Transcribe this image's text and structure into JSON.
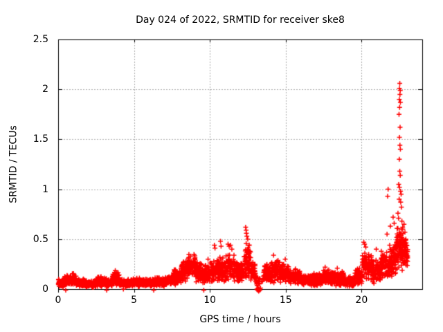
{
  "chart_data": {
    "type": "scatter",
    "title": "Day 024 of 2022, SRMTID for receiver ske8",
    "xlabel": "GPS time / hours",
    "ylabel": "SRMTID / TECUs",
    "xlim": [
      0,
      24
    ],
    "ylim": [
      0,
      2.5
    ],
    "xticks": {
      "values": [
        0,
        5,
        10,
        15,
        20
      ],
      "labels": [
        "0",
        "5",
        "10",
        "15",
        "20"
      ]
    },
    "yticks": {
      "values": [
        0,
        0.5,
        1,
        1.5,
        2,
        2.5
      ],
      "labels": [
        "0",
        "0.5",
        "1",
        "1.5",
        "2",
        "2.5"
      ]
    },
    "grid": {
      "on": true,
      "color": "#ababab",
      "dash": [
        2,
        2
      ]
    },
    "marker": {
      "shape": "plus",
      "color": "#ff0000",
      "size": 7,
      "line_width": 1.5
    },
    "background": "#ffffff",
    "border_color": "#000000",
    "legend": "none",
    "series": [
      {
        "name": "SRMTID",
        "color": "#ff0000",
        "band_summary": [
          [
            0.0,
            0.4,
            55,
            0.01,
            0.11
          ],
          [
            0.4,
            0.8,
            60,
            0.02,
            0.14
          ],
          [
            0.8,
            1.2,
            60,
            0.03,
            0.16
          ],
          [
            1.2,
            1.8,
            80,
            0.02,
            0.11
          ],
          [
            1.8,
            2.5,
            95,
            0.01,
            0.09
          ],
          [
            2.5,
            3.2,
            95,
            0.02,
            0.13
          ],
          [
            3.2,
            3.55,
            50,
            0.02,
            0.1
          ],
          [
            3.55,
            4.05,
            65,
            0.03,
            0.19
          ],
          [
            4.05,
            4.9,
            110,
            0.02,
            0.1
          ],
          [
            4.9,
            5.4,
            70,
            0.02,
            0.12
          ],
          [
            5.4,
            6.2,
            105,
            0.02,
            0.11
          ],
          [
            6.2,
            7.0,
            105,
            0.02,
            0.12
          ],
          [
            7.0,
            7.6,
            80,
            0.03,
            0.14
          ],
          [
            7.6,
            8.1,
            70,
            0.04,
            0.21
          ],
          [
            8.1,
            8.5,
            60,
            0.06,
            0.29
          ],
          [
            8.5,
            9.05,
            80,
            0.1,
            0.37
          ],
          [
            9.05,
            9.5,
            60,
            0.06,
            0.28
          ],
          [
            9.5,
            10.0,
            70,
            0.05,
            0.24
          ],
          [
            10.0,
            10.55,
            75,
            0.05,
            0.3
          ],
          [
            10.55,
            11.05,
            70,
            0.06,
            0.33
          ],
          [
            11.05,
            11.65,
            80,
            0.06,
            0.35
          ],
          [
            11.65,
            12.25,
            80,
            0.05,
            0.3
          ],
          [
            12.25,
            12.7,
            70,
            0.1,
            0.5
          ],
          [
            12.7,
            13.0,
            45,
            0.08,
            0.28
          ],
          [
            13.0,
            13.55,
            22,
            0.03,
            0.15
          ],
          [
            13.55,
            14.05,
            70,
            0.06,
            0.27
          ],
          [
            14.05,
            14.65,
            85,
            0.06,
            0.3
          ],
          [
            14.65,
            15.25,
            85,
            0.05,
            0.26
          ],
          [
            15.25,
            16.05,
            110,
            0.04,
            0.21
          ],
          [
            16.05,
            16.75,
            100,
            0.03,
            0.15
          ],
          [
            16.75,
            17.45,
            100,
            0.03,
            0.17
          ],
          [
            17.45,
            18.15,
            100,
            0.04,
            0.2
          ],
          [
            18.15,
            18.85,
            100,
            0.03,
            0.18
          ],
          [
            18.85,
            19.55,
            100,
            0.02,
            0.13
          ],
          [
            19.55,
            20.05,
            70,
            0.04,
            0.22
          ],
          [
            20.05,
            20.65,
            85,
            0.08,
            0.38
          ],
          [
            20.65,
            21.25,
            80,
            0.05,
            0.31
          ],
          [
            21.25,
            21.85,
            80,
            0.08,
            0.38
          ],
          [
            21.85,
            22.3,
            70,
            0.1,
            0.46
          ],
          [
            22.3,
            22.75,
            85,
            0.15,
            0.66
          ],
          [
            22.75,
            23.05,
            48,
            0.22,
            0.55
          ]
        ],
        "outlier_points": [
          [
            0.5,
            -0.01
          ],
          [
            3.2,
            -0.01
          ],
          [
            4.3,
            0.0
          ],
          [
            6.3,
            -0.01
          ],
          [
            9.6,
            -0.01
          ],
          [
            13.1,
            0.0
          ],
          [
            13.14,
            -0.01
          ],
          [
            13.18,
            0.01
          ],
          [
            13.22,
            -0.02
          ],
          [
            13.26,
            0.0
          ],
          [
            13.3,
            -0.01
          ],
          [
            13.34,
            0.01
          ],
          [
            13.21,
            0.0
          ],
          [
            9.88,
            0.3
          ],
          [
            10.3,
            0.44
          ],
          [
            10.34,
            0.41
          ],
          [
            10.7,
            0.48
          ],
          [
            10.74,
            0.43
          ],
          [
            11.2,
            0.45
          ],
          [
            11.27,
            0.43
          ],
          [
            11.36,
            0.44
          ],
          [
            11.45,
            0.4
          ],
          [
            12.36,
            0.62
          ],
          [
            12.39,
            0.59
          ],
          [
            12.41,
            0.56
          ],
          [
            12.44,
            0.53
          ],
          [
            12.5,
            0.5
          ],
          [
            14.2,
            0.34
          ],
          [
            14.97,
            0.3
          ],
          [
            17.6,
            0.22
          ],
          [
            18.4,
            0.21
          ],
          [
            20.15,
            0.47
          ],
          [
            20.2,
            0.45
          ],
          [
            20.28,
            0.42
          ],
          [
            20.97,
            0.4
          ],
          [
            21.3,
            0.38
          ],
          [
            21.68,
            0.55
          ],
          [
            21.72,
            0.93
          ],
          [
            21.75,
            1.0
          ],
          [
            21.9,
            0.63
          ],
          [
            22.08,
            0.72
          ],
          [
            22.15,
            0.66
          ],
          [
            22.52,
            2.06
          ],
          [
            22.5,
            2.01
          ],
          [
            22.55,
            1.99
          ],
          [
            22.53,
            1.95
          ],
          [
            22.49,
            1.9
          ],
          [
            22.56,
            1.87
          ],
          [
            22.51,
            1.82
          ],
          [
            22.47,
            1.75
          ],
          [
            22.54,
            1.62
          ],
          [
            22.5,
            1.52
          ],
          [
            22.53,
            1.44
          ],
          [
            22.56,
            1.4
          ],
          [
            22.49,
            1.3
          ],
          [
            22.52,
            1.18
          ],
          [
            22.55,
            1.14
          ],
          [
            22.45,
            1.05
          ],
          [
            22.5,
            1.02
          ],
          [
            22.57,
            0.98
          ],
          [
            22.61,
            0.95
          ],
          [
            22.48,
            0.9
          ],
          [
            22.58,
            0.87
          ],
          [
            22.63,
            0.82
          ],
          [
            22.4,
            0.76
          ],
          [
            22.44,
            0.71
          ],
          [
            22.66,
            0.68
          ],
          [
            22.71,
            0.62
          ],
          [
            22.8,
            0.65
          ],
          [
            22.86,
            0.57
          ],
          [
            22.92,
            0.5
          ],
          [
            22.97,
            0.44
          ],
          [
            23.0,
            0.38
          ],
          [
            23.03,
            0.33
          ]
        ]
      }
    ]
  }
}
